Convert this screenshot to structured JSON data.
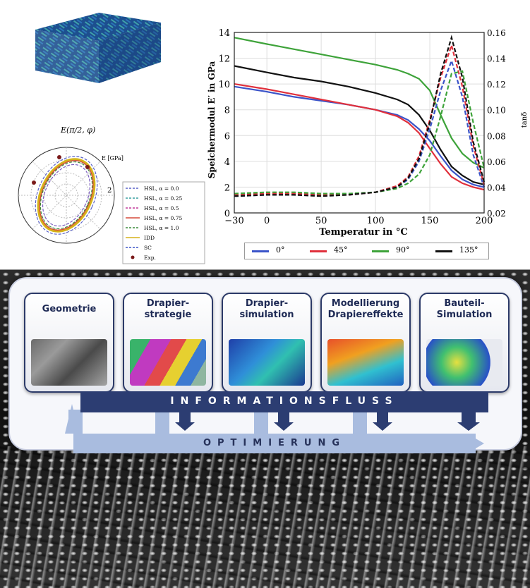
{
  "colors": {
    "series_0": "#3b54c9",
    "series_45": "#e0303c",
    "series_90": "#3ea33a",
    "series_135": "#111111",
    "flow": "#2c3d72",
    "optimization": "#a9bcdf"
  },
  "chart_data": [
    {
      "type": "line",
      "xlabel": "Temperatur in °C",
      "ylabel": "Speichermodul E′ in GPa",
      "y2label": "tanδ",
      "xlim": [
        -30,
        200
      ],
      "ylim": [
        0,
        14
      ],
      "y2lim": [
        0.02,
        0.16
      ],
      "x_ticks": [
        "−30",
        "0",
        "50",
        "100",
        "150",
        "200"
      ],
      "y_ticks": [
        "0",
        "2",
        "4",
        "6",
        "8",
        "10",
        "12",
        "14"
      ],
      "y2_ticks": [
        "0.02",
        "0.04",
        "0.06",
        "0.08",
        "0.10",
        "0.12",
        "0.14",
        "0.16"
      ],
      "grid": true,
      "legend_position": "bottom",
      "legend": [
        "0°",
        "45°",
        "90°",
        "135°"
      ],
      "x": [
        -30,
        0,
        25,
        50,
        75,
        100,
        120,
        130,
        140,
        150,
        160,
        170,
        180,
        190,
        200
      ],
      "series": [
        {
          "name": "0°",
          "axis": "left",
          "style": "solid",
          "values": [
            9.8,
            9.4,
            9.0,
            8.7,
            8.4,
            8.0,
            7.6,
            7.2,
            6.5,
            5.6,
            4.4,
            3.3,
            2.6,
            2.2,
            2.0
          ]
        },
        {
          "name": "45°",
          "axis": "left",
          "style": "solid",
          "values": [
            10.0,
            9.6,
            9.2,
            8.8,
            8.4,
            8.0,
            7.5,
            7.0,
            6.2,
            5.0,
            3.8,
            2.8,
            2.3,
            2.0,
            1.8
          ]
        },
        {
          "name": "90°",
          "axis": "left",
          "style": "solid",
          "values": [
            13.6,
            13.1,
            12.7,
            12.3,
            11.9,
            11.5,
            11.1,
            10.8,
            10.4,
            9.5,
            7.6,
            5.8,
            4.6,
            3.9,
            3.5
          ]
        },
        {
          "name": "135°",
          "axis": "left",
          "style": "solid",
          "values": [
            11.4,
            10.9,
            10.5,
            10.2,
            9.8,
            9.3,
            8.8,
            8.4,
            7.6,
            6.4,
            4.9,
            3.6,
            2.9,
            2.4,
            2.2
          ]
        },
        {
          "name": "0°",
          "axis": "right",
          "style": "dashed",
          "values": [
            0.033,
            0.034,
            0.034,
            0.034,
            0.034,
            0.036,
            0.04,
            0.046,
            0.06,
            0.085,
            0.115,
            0.138,
            0.11,
            0.065,
            0.04
          ]
        },
        {
          "name": "45°",
          "axis": "right",
          "style": "dashed",
          "values": [
            0.034,
            0.035,
            0.035,
            0.034,
            0.034,
            0.036,
            0.041,
            0.048,
            0.064,
            0.092,
            0.125,
            0.15,
            0.118,
            0.072,
            0.042
          ]
        },
        {
          "name": "90°",
          "axis": "right",
          "style": "dashed",
          "values": [
            0.035,
            0.036,
            0.036,
            0.035,
            0.035,
            0.036,
            0.039,
            0.043,
            0.05,
            0.065,
            0.095,
            0.128,
            0.13,
            0.09,
            0.055
          ]
        },
        {
          "name": "135°",
          "axis": "right",
          "style": "dashed",
          "values": [
            0.033,
            0.034,
            0.034,
            0.033,
            0.034,
            0.036,
            0.04,
            0.047,
            0.062,
            0.09,
            0.128,
            0.156,
            0.125,
            0.075,
            0.044
          ]
        }
      ]
    },
    {
      "type": "polar",
      "title": "E(π/2, φ)",
      "radial_label": "E [GPa]",
      "radial_tick": "2",
      "legend": [
        "HSL, α = 0.0",
        "HSL, α = 0.25",
        "HSL, α = 0.5",
        "HSL, α = 0.75",
        "HSL, α = 1.0",
        "IDD",
        "SC",
        "Exp."
      ]
    }
  ],
  "process": {
    "steps": [
      {
        "label": "Geometrie"
      },
      {
        "label": "Drapier-\nstrategie"
      },
      {
        "label": "Drapier-\nsimulation"
      },
      {
        "label": "Modellierung\nDrapiereffekte"
      },
      {
        "label": "Bauteil-\nSimulation"
      }
    ],
    "flow_label": "INFORMATIONSFLUSS",
    "optimization_label": "OPTIMIERUNG"
  }
}
